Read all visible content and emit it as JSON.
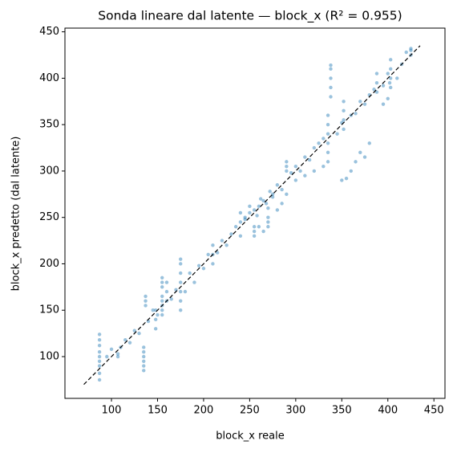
{
  "chart_data": {
    "type": "scatter",
    "title": "Sonda lineare dal latente — block_x (R² = 0.955)",
    "xlabel": "block_x reale",
    "ylabel": "block_x predetto (dal latente)",
    "xlim": [
      49.5,
      462
    ],
    "ylim": [
      55,
      454
    ],
    "xticks": [
      100,
      150,
      200,
      250,
      300,
      350,
      400,
      450
    ],
    "yticks": [
      100,
      150,
      200,
      250,
      300,
      350,
      400,
      450
    ],
    "grid": false,
    "identity_line": {
      "x": [
        70,
        435
      ],
      "values": [
        70,
        435
      ],
      "color": "#000000"
    },
    "series": [
      {
        "color": "#1f77b4",
        "x": [
          87,
          87,
          87,
          87,
          87,
          87,
          87,
          87,
          87,
          107,
          107,
          135,
          135,
          135,
          135,
          135,
          135,
          137,
          137,
          137,
          148,
          148,
          148,
          155,
          155,
          155,
          155,
          155,
          155,
          155,
          155,
          160,
          160,
          160,
          175,
          175,
          175,
          175,
          175,
          175,
          175,
          210,
          210,
          210,
          240,
          240,
          240,
          255,
          255,
          255,
          270,
          270,
          270,
          290,
          290,
          290,
          335,
          335,
          335,
          335,
          335,
          335,
          338,
          338,
          338,
          338,
          338,
          352,
          352,
          352,
          352,
          388,
          388,
          388,
          403,
          403,
          403,
          403,
          425,
          425,
          425,
          95,
          100,
          110,
          115,
          120,
          125,
          130,
          140,
          145,
          150,
          165,
          170,
          180,
          185,
          190,
          195,
          200,
          205,
          215,
          220,
          225,
          230,
          235,
          245,
          250,
          260,
          265,
          275,
          280,
          285,
          295,
          300,
          305,
          310,
          315,
          320,
          325,
          330,
          345,
          350,
          360,
          365,
          370,
          375,
          380,
          385,
          395,
          400,
          410,
          415,
          420,
          260,
          265,
          270,
          280,
          285,
          290,
          300,
          310,
          320,
          330,
          350,
          355,
          360,
          365,
          370,
          375,
          380,
          395,
          400,
          402,
          250,
          255,
          262,
          268,
          275,
          245,
          258,
          272
        ],
        "values": [
          75,
          82,
          90,
          95,
          100,
          105,
          112,
          118,
          124,
          100,
          103,
          85,
          90,
          95,
          100,
          105,
          110,
          155,
          160,
          165,
          130,
          140,
          150,
          145,
          150,
          155,
          160,
          165,
          175,
          180,
          185,
          160,
          170,
          180,
          150,
          160,
          170,
          180,
          190,
          200,
          205,
          200,
          210,
          220,
          230,
          245,
          255,
          230,
          235,
          240,
          240,
          250,
          260,
          300,
          305,
          310,
          310,
          320,
          330,
          340,
          350,
          360,
          380,
          390,
          400,
          410,
          414,
          345,
          355,
          365,
          375,
          385,
          395,
          405,
          390,
          400,
          410,
          420,
          425,
          430,
          432,
          100,
          108,
          110,
          118,
          115,
          128,
          125,
          138,
          150,
          145,
          162,
          172,
          170,
          190,
          180,
          198,
          195,
          210,
          212,
          225,
          220,
          232,
          240,
          248,
          255,
          262,
          268,
          272,
          285,
          280,
          298,
          305,
          300,
          315,
          312,
          325,
          330,
          335,
          340,
          352,
          360,
          362,
          375,
          372,
          382,
          388,
          392,
          405,
          400,
          415,
          428,
          240,
          235,
          245,
          258,
          265,
          275,
          290,
          295,
          300,
          305,
          290,
          292,
          300,
          310,
          320,
          315,
          330,
          372,
          378,
          395,
          262,
          258,
          270,
          265,
          275,
          250,
          252,
          278
        ]
      }
    ]
  }
}
